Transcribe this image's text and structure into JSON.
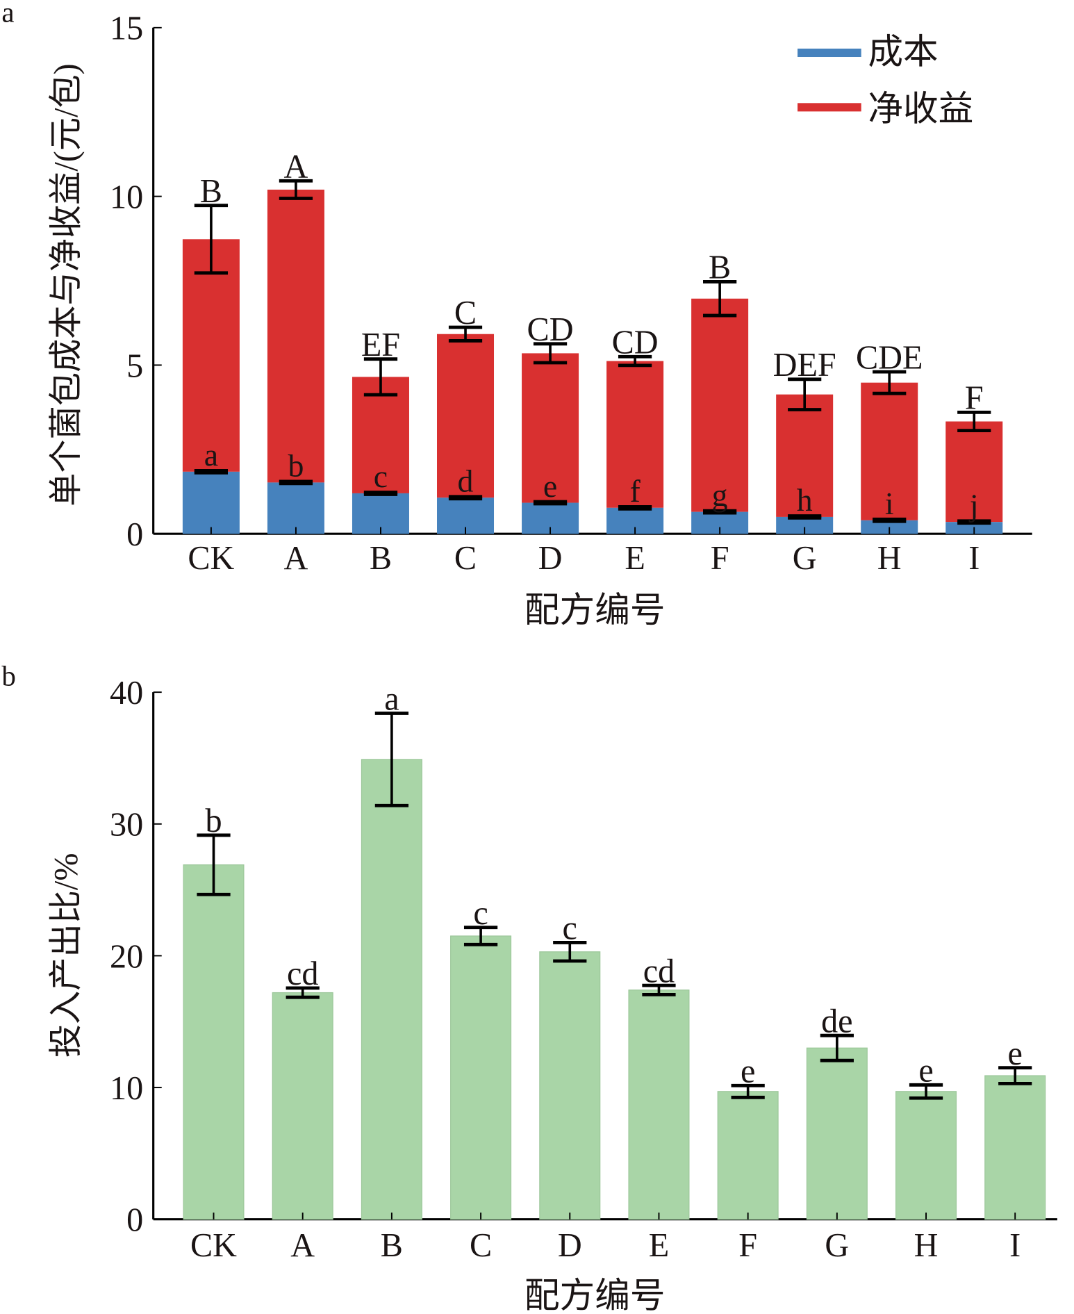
{
  "chart_data": [
    {
      "panel_label": "a",
      "type": "bar",
      "stacked": true,
      "categories": [
        "CK",
        "A",
        "B",
        "C",
        "D",
        "E",
        "F",
        "G",
        "H",
        "I"
      ],
      "xlabel": "配方编号",
      "ylabel": "单个菌包成本与净收益/(元/包)",
      "ylim": [
        0,
        15
      ],
      "yticks": [
        "0",
        "5",
        "10",
        "15"
      ],
      "ytick_values": [
        0,
        5,
        10,
        15
      ],
      "grid": false,
      "legend_position": "top-right",
      "series": [
        {
          "name": "成本",
          "color": "#4682bd",
          "values": [
            1.84,
            1.52,
            1.2,
            1.07,
            0.92,
            0.77,
            0.65,
            0.5,
            0.4,
            0.35
          ],
          "errors": [
            0.03,
            0.03,
            0.03,
            0.03,
            0.03,
            0.03,
            0.03,
            0.03,
            0.03,
            0.03
          ],
          "labels": [
            "a",
            "b",
            "c",
            "d",
            "e",
            "f",
            "g",
            "h",
            "i",
            "j"
          ]
        },
        {
          "name": "净收益",
          "color": "#d93030",
          "totals": [
            8.73,
            10.2,
            4.65,
            5.92,
            5.35,
            5.12,
            6.97,
            4.13,
            4.48,
            3.33
          ],
          "values": [
            6.89,
            8.68,
            3.45,
            4.85,
            4.43,
            4.35,
            6.32,
            3.63,
            4.08,
            2.98
          ],
          "errors": [
            1.0,
            0.26,
            0.53,
            0.2,
            0.28,
            0.13,
            0.5,
            0.45,
            0.32,
            0.27
          ],
          "labels": [
            "B",
            "A",
            "EF",
            "C",
            "CD",
            "CD",
            "B",
            "DEF",
            "CDE",
            "F"
          ]
        }
      ]
    },
    {
      "panel_label": "b",
      "type": "bar",
      "categories": [
        "CK",
        "A",
        "B",
        "C",
        "D",
        "E",
        "F",
        "G",
        "H",
        "I"
      ],
      "xlabel": "配方编号",
      "ylabel": "投入产出比/%",
      "ylim": [
        0,
        40
      ],
      "yticks": [
        "0",
        "10",
        "20",
        "30",
        "40"
      ],
      "ytick_values": [
        0,
        10,
        20,
        30,
        40
      ],
      "grid": false,
      "series": [
        {
          "name": "投入产出比",
          "color": "#a9d5a7",
          "values": [
            26.9,
            17.2,
            34.9,
            21.5,
            20.3,
            17.4,
            9.7,
            13.0,
            9.7,
            10.9
          ],
          "errors": [
            2.25,
            0.35,
            3.5,
            0.65,
            0.7,
            0.35,
            0.45,
            0.95,
            0.5,
            0.6
          ],
          "labels": [
            "b",
            "cd",
            "a",
            "c",
            "c",
            "cd",
            "e",
            "de",
            "e",
            "e"
          ]
        }
      ]
    }
  ]
}
